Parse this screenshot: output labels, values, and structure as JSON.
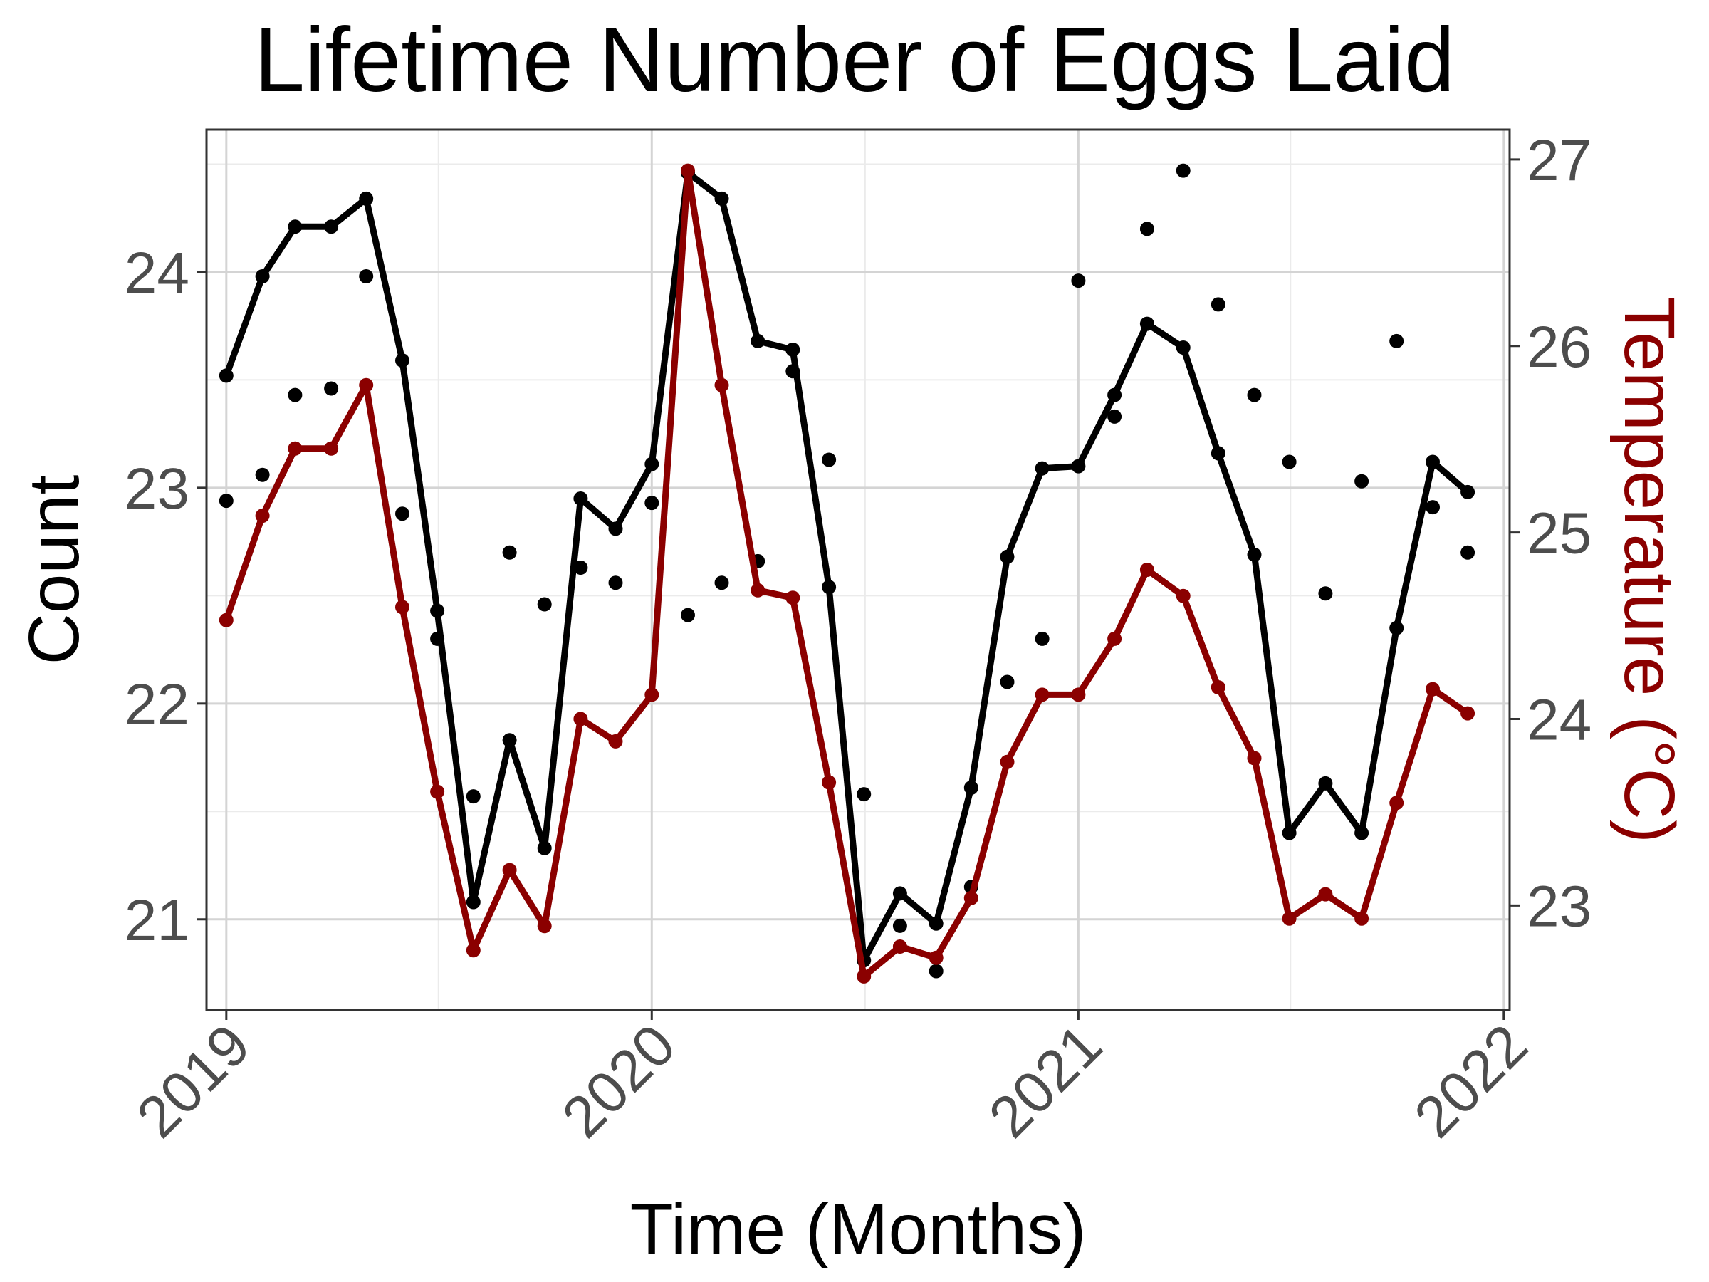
{
  "chart_data": {
    "type": "line",
    "title": "Lifetime Number of Eggs Laid",
    "xlabel": "Time (Months)",
    "ylabel": "Count",
    "y2label": "Temperature (°C)",
    "x_ticks": [
      "2019",
      "2020",
      "2021",
      "2022"
    ],
    "y_ticks": [
      "21",
      "22",
      "23",
      "24"
    ],
    "y2_ticks": [
      "23",
      "24",
      "25",
      "26",
      "27"
    ],
    "xlim": [
      "2018-12-15",
      "2022-01-06"
    ],
    "ylim": [
      20.58,
      24.66
    ],
    "y2lim": [
      22.44,
      27.16
    ],
    "grid": true,
    "colors": {
      "count": "#000000",
      "temperature": "#8b0000",
      "axis_text": "#4d4d4d"
    },
    "x": [
      "2019-01",
      "2019-02",
      "2019-03",
      "2019-04",
      "2019-05",
      "2019-06",
      "2019-07",
      "2019-08",
      "2019-09",
      "2019-10",
      "2019-11",
      "2019-12",
      "2020-01",
      "2020-02",
      "2020-03",
      "2020-04",
      "2020-05",
      "2020-06",
      "2020-07",
      "2020-08",
      "2020-09",
      "2020-10",
      "2020-11",
      "2020-12",
      "2021-01",
      "2021-02",
      "2021-03",
      "2021-04",
      "2021-05",
      "2021-06",
      "2021-07",
      "2021-08",
      "2021-09",
      "2021-10",
      "2021-11",
      "2021-12"
    ],
    "series": [
      {
        "style": "line",
        "axis": "left",
        "values": [
          23.52,
          23.98,
          24.21,
          24.21,
          24.34,
          23.59,
          22.43,
          21.08,
          21.83,
          21.33,
          22.95,
          22.81,
          23.11,
          24.46,
          24.34,
          23.68,
          23.64,
          22.54,
          20.81,
          21.12,
          20.98,
          21.61,
          22.68,
          23.09,
          23.1,
          23.43,
          23.76,
          23.65,
          23.16,
          22.69,
          21.4,
          21.63,
          21.4,
          22.35,
          23.12,
          22.98
        ]
      },
      {
        "style": "points",
        "axis": "left",
        "values": [
          22.94,
          23.06,
          23.43,
          23.46,
          23.98,
          22.88,
          22.3,
          21.57,
          22.7,
          22.46,
          22.63,
          22.56,
          22.93,
          22.41,
          22.56,
          22.66,
          23.54,
          23.13,
          21.58,
          20.97,
          20.76,
          21.15,
          22.1,
          22.3,
          23.96,
          23.33,
          24.2,
          24.47,
          23.85,
          23.43,
          23.12,
          22.51,
          23.03,
          23.68,
          22.91,
          22.7
        ]
      },
      {
        "style": "line",
        "axis": "right",
        "values": [
          24.53,
          25.09,
          25.45,
          25.45,
          25.79,
          24.6,
          23.61,
          22.76,
          23.19,
          22.89,
          24.0,
          23.88,
          24.13,
          26.94,
          25.79,
          24.69,
          24.65,
          23.66,
          22.62,
          22.78,
          22.72,
          23.04,
          23.77,
          24.13,
          24.13,
          24.43,
          24.8,
          24.66,
          24.17,
          23.79,
          22.93,
          23.06,
          22.93,
          23.55,
          24.16,
          24.03
        ]
      }
    ]
  }
}
